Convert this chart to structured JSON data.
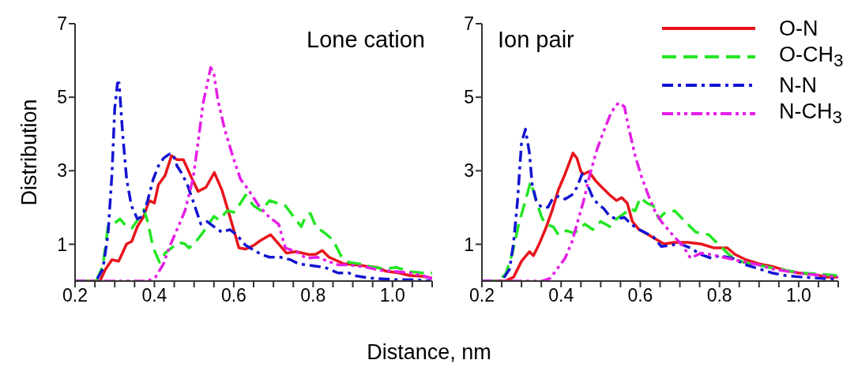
{
  "chart_data": [
    {
      "type": "line",
      "title": "Lone cation",
      "ylabel": "Distribution",
      "xlabel": "Distance, nm",
      "xlim": [
        0.2,
        1.1
      ],
      "ylim": [
        0,
        7
      ],
      "xticks": [
        0.2,
        {
          "value": 0.25,
          "label": null
        },
        0.4,
        {
          "value": 0.3,
          "label": null
        },
        {
          "value": 0.35,
          "label": null
        },
        {
          "value": 0.45,
          "label": null
        },
        {
          "value": 0.5,
          "label": null
        },
        {
          "value": 0.55,
          "label": null
        },
        0.6,
        {
          "value": 0.65,
          "label": null
        },
        {
          "value": 0.7,
          "label": null
        },
        {
          "value": 0.75,
          "label": null
        },
        0.8,
        {
          "value": 0.85,
          "label": null
        },
        {
          "value": 0.9,
          "label": null
        },
        {
          "value": 0.95,
          "label": null
        },
        {
          "value": 1.0,
          "label": "1.0"
        },
        {
          "value": 1.05,
          "label": null
        },
        {
          "value": 1.1,
          "label": null
        }
      ],
      "yticks": [
        1,
        3,
        5,
        7
      ],
      "grid": false,
      "legend": false,
      "marker": "none",
      "series": [
        {
          "color": "#e8141c",
          "line_style": "solid",
          "x": [
            0.2,
            0.263,
            0.277,
            0.293,
            0.31,
            0.33,
            0.343,
            0.357,
            0.373,
            0.387,
            0.4,
            0.41,
            0.427,
            0.443,
            0.457,
            0.473,
            0.497,
            0.51,
            0.53,
            0.551,
            0.57,
            0.59,
            0.613,
            0.63,
            0.65,
            0.667,
            0.693,
            0.71,
            0.733,
            0.757,
            0.79,
            0.807,
            0.823,
            0.84,
            0.877,
            0.91,
            0.937,
            0.963,
            0.983,
            1.017,
            1.043,
            1.077,
            1.1
          ],
          "values": [
            0,
            0,
            0.33,
            0.58,
            0.54,
            1.01,
            1.08,
            1.48,
            1.76,
            2.19,
            2.12,
            2.62,
            2.87,
            3.41,
            3.3,
            3.3,
            2.73,
            2.44,
            2.55,
            2.95,
            2.48,
            1.76,
            0.9,
            0.87,
            0.97,
            1.1,
            1.26,
            1.05,
            0.76,
            0.8,
            0.72,
            0.73,
            0.83,
            0.65,
            0.47,
            0.44,
            0.4,
            0.37,
            0.27,
            0.22,
            0.15,
            0.13,
            0.08
          ]
        },
        {
          "color": "#22e622",
          "line_style": "dashed",
          "x": [
            0.2,
            0.253,
            0.27,
            0.283,
            0.297,
            0.313,
            0.33,
            0.343,
            0.36,
            0.373,
            0.383,
            0.397,
            0.413,
            0.427,
            0.443,
            0.463,
            0.477,
            0.487,
            0.503,
            0.523,
            0.55,
            0.563,
            0.583,
            0.6,
            0.613,
            0.63,
            0.65,
            0.67,
            0.69,
            0.71,
            0.73,
            0.75,
            0.77,
            0.783,
            0.793,
            0.807,
            0.83,
            0.85,
            0.87,
            0.89,
            0.917,
            0.943,
            0.977,
            1.01,
            1.043,
            1.077,
            1.1
          ],
          "values": [
            0,
            0,
            0.4,
            1.48,
            1.55,
            1.69,
            1.48,
            1.44,
            1.69,
            1.94,
            1.62,
            0.9,
            0.51,
            0.76,
            0.9,
            1.05,
            1.01,
            0.9,
            1.05,
            1.33,
            1.76,
            1.66,
            1.91,
            1.87,
            2.05,
            2.34,
            2.05,
            1.91,
            2.19,
            2.12,
            2.05,
            1.76,
            1.48,
            1.8,
            1.84,
            1.48,
            1.3,
            1.12,
            0.69,
            0.51,
            0.47,
            0.4,
            0.33,
            0.37,
            0.26,
            0.22,
            0.22
          ]
        },
        {
          "color": "#1414d2",
          "line_style": "dashdot",
          "x": [
            0.2,
            0.253,
            0.27,
            0.283,
            0.293,
            0.3,
            0.307,
            0.311,
            0.32,
            0.33,
            0.342,
            0.357,
            0.37,
            0.383,
            0.397,
            0.41,
            0.423,
            0.437,
            0.447,
            0.457,
            0.47,
            0.483,
            0.497,
            0.517,
            0.533,
            0.55,
            0.57,
            0.59,
            0.607,
            0.63,
            0.67,
            0.69,
            0.717,
            0.743,
            0.763,
            0.797,
            0.83,
            0.863,
            0.89,
            0.903,
            0.943,
            0.977,
            1.01,
            1.05,
            1.097
          ],
          "values": [
            0,
            0,
            0.33,
            1.26,
            2.9,
            4.7,
            5.39,
            5.39,
            4.0,
            2.77,
            2.05,
            1.69,
            1.76,
            2.19,
            2.77,
            3.13,
            3.34,
            3.45,
            3.45,
            3.13,
            2.91,
            2.62,
            2.19,
            1.55,
            1.62,
            1.48,
            1.33,
            1.4,
            1.26,
            0.97,
            0.72,
            0.65,
            0.65,
            0.58,
            0.47,
            0.42,
            0.37,
            0.22,
            0.22,
            0.15,
            0.08,
            0.06,
            0.04,
            0.04,
            0
          ]
        },
        {
          "color": "#e61ee6",
          "line_style": "dashdotdot",
          "x": [
            0.2,
            0.383,
            0.403,
            0.423,
            0.437,
            0.457,
            0.477,
            0.497,
            0.51,
            0.523,
            0.537,
            0.542,
            0.55,
            0.56,
            0.577,
            0.597,
            0.617,
            0.637,
            0.663,
            0.69,
            0.713,
            0.73,
            0.757,
            0.783,
            0.81,
            0.837,
            0.863,
            0.89,
            0.917,
            0.937,
            0.97,
            1.01,
            1.043,
            1.077,
            1.1
          ],
          "values": [
            0,
            0,
            0.11,
            0.47,
            0.9,
            1.4,
            1.91,
            2.77,
            3.77,
            4.85,
            5.56,
            5.81,
            5.63,
            4.92,
            4.13,
            3.41,
            2.77,
            2.48,
            2.05,
            1.73,
            1.55,
            0.9,
            0.8,
            0.62,
            0.65,
            0.54,
            0.44,
            0.44,
            0.4,
            0.37,
            0.29,
            0.26,
            0.22,
            0.15,
            0.06
          ]
        }
      ]
    },
    {
      "type": "line",
      "title": "Ion pair",
      "xlim": [
        0.2,
        1.1
      ],
      "ylim": [
        0,
        7
      ],
      "xticks": [
        0.2,
        {
          "value": 0.25,
          "label": null
        },
        0.4,
        {
          "value": 0.3,
          "label": null
        },
        {
          "value": 0.35,
          "label": null
        },
        {
          "value": 0.45,
          "label": null
        },
        {
          "value": 0.5,
          "label": null
        },
        {
          "value": 0.55,
          "label": null
        },
        0.6,
        {
          "value": 0.65,
          "label": null
        },
        {
          "value": 0.7,
          "label": null
        },
        {
          "value": 0.75,
          "label": null
        },
        0.8,
        {
          "value": 0.85,
          "label": null
        },
        {
          "value": 0.9,
          "label": null
        },
        {
          "value": 0.95,
          "label": null
        },
        {
          "value": 1.0,
          "label": "1.0"
        },
        {
          "value": 1.05,
          "label": null
        },
        {
          "value": 1.1,
          "label": null
        }
      ],
      "yticks": [
        1,
        3,
        5,
        7
      ],
      "grid": false,
      "legend": "top right",
      "marker": "none",
      "series": [
        {
          "name": "O-N",
          "color": "#e8141c",
          "line_style": "solid",
          "x": [
            0.2,
            0.26,
            0.28,
            0.3,
            0.32,
            0.33,
            0.343,
            0.36,
            0.377,
            0.393,
            0.41,
            0.43,
            0.44,
            0.45,
            0.457,
            0.47,
            0.487,
            0.503,
            0.523,
            0.54,
            0.553,
            0.567,
            0.58,
            0.597,
            0.62,
            0.66,
            0.687,
            0.72,
            0.753,
            0.787,
            0.82,
            0.84,
            0.867,
            0.9,
            0.933,
            0.967,
            1.0,
            1.033,
            1.073,
            1.1
          ],
          "values": [
            0,
            0,
            0.11,
            0.54,
            0.8,
            0.69,
            0.97,
            1.4,
            1.91,
            2.48,
            2.91,
            3.48,
            3.34,
            2.98,
            2.91,
            2.98,
            2.73,
            2.55,
            2.34,
            2.19,
            2.27,
            2.12,
            1.62,
            1.4,
            1.26,
            1.01,
            1.05,
            1.05,
            1.01,
            0.9,
            0.9,
            0.72,
            0.58,
            0.47,
            0.4,
            0.29,
            0.22,
            0.19,
            0.11,
            0.11
          ]
        },
        {
          "name": "O-CH$_{3}$",
          "color": "#22e622",
          "line_style": "dashed",
          "x": [
            0.2,
            0.24,
            0.26,
            0.277,
            0.293,
            0.31,
            0.323,
            0.337,
            0.35,
            0.36,
            0.38,
            0.393,
            0.413,
            0.433,
            0.46,
            0.48,
            0.5,
            0.523,
            0.54,
            0.56,
            0.573,
            0.587,
            0.6,
            0.617,
            0.633,
            0.647,
            0.66,
            0.687,
            0.713,
            0.74,
            0.773,
            0.8,
            0.827,
            0.86,
            0.893,
            0.927,
            0.967,
            1.007,
            1.053,
            1.1
          ],
          "values": [
            0,
            0,
            0.19,
            0.76,
            1.55,
            2.19,
            2.7,
            2.19,
            1.76,
            1.55,
            1.48,
            1.26,
            1.37,
            1.3,
            1.55,
            1.4,
            1.62,
            1.48,
            1.69,
            1.84,
            1.98,
            1.91,
            2.27,
            2.12,
            2.05,
            1.69,
            1.84,
            1.91,
            1.62,
            1.33,
            1.26,
            0.97,
            0.69,
            0.51,
            0.44,
            0.37,
            0.29,
            0.22,
            0.19,
            0.15
          ]
        },
        {
          "name": "N-N",
          "color": "#1414d2",
          "line_style": "dashdot",
          "x": [
            0.2,
            0.25,
            0.27,
            0.28,
            0.29,
            0.3,
            0.31,
            0.32,
            0.327,
            0.337,
            0.35,
            0.367,
            0.38,
            0.393,
            0.41,
            0.427,
            0.44,
            0.453,
            0.463,
            0.48,
            0.493,
            0.507,
            0.523,
            0.54,
            0.56,
            0.577,
            0.59,
            0.61,
            0.633,
            0.653,
            0.673,
            0.7,
            0.727,
            0.753,
            0.78,
            0.8,
            0.833,
            0.867,
            0.9,
            0.933,
            0.967,
            1.007,
            1.047,
            1.1
          ],
          "values": [
            0,
            0,
            0.33,
            1.05,
            2.19,
            3.77,
            4.13,
            3.48,
            2.62,
            2.19,
            2.01,
            2.01,
            2.27,
            2.3,
            2.23,
            2.34,
            2.55,
            2.91,
            2.7,
            2.27,
            2.09,
            1.98,
            1.76,
            1.69,
            1.73,
            1.55,
            1.44,
            1.33,
            1.2,
            0.94,
            0.97,
            1.01,
            0.9,
            0.72,
            0.62,
            0.69,
            0.62,
            0.44,
            0.33,
            0.22,
            0.15,
            0.11,
            0.08,
            0.04
          ]
        },
        {
          "name": "N-CH$_{3}$",
          "color": "#e61ee6",
          "line_style": "dashdotdot",
          "x": [
            0.2,
            0.353,
            0.373,
            0.39,
            0.41,
            0.427,
            0.44,
            0.457,
            0.473,
            0.49,
            0.507,
            0.523,
            0.537,
            0.547,
            0.56,
            0.57,
            0.587,
            0.603,
            0.62,
            0.637,
            0.653,
            0.687,
            0.707,
            0.727,
            0.753,
            0.78,
            0.82,
            0.867,
            0.9,
            0.933,
            0.973,
            1.02,
            1.06,
            1.1
          ],
          "values": [
            0,
            0,
            0.08,
            0.33,
            0.62,
            1.05,
            1.55,
            2.19,
            2.91,
            3.56,
            4.06,
            4.49,
            4.77,
            4.85,
            4.74,
            4.2,
            3.41,
            2.84,
            2.34,
            1.9,
            1.62,
            1.19,
            0.97,
            0.62,
            0.76,
            0.72,
            0.62,
            0.51,
            0.44,
            0.33,
            0.26,
            0.19,
            0.15,
            0.11
          ]
        }
      ]
    }
  ]
}
